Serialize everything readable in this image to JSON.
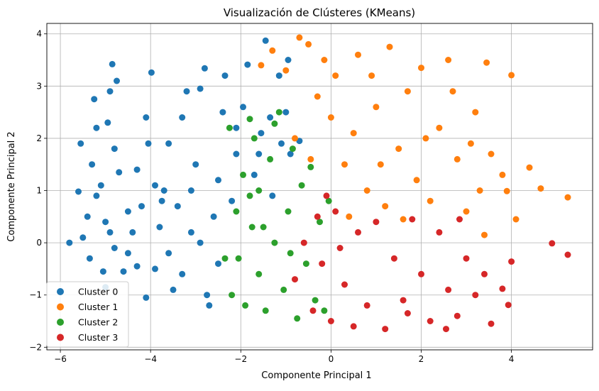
{
  "chart_data": {
    "type": "scatter",
    "title": "Visualización de Clústeres (KMeans)",
    "xlabel": "Componente Principal 1",
    "ylabel": "Componente Principal 2",
    "xlim": [
      -6.3,
      5.8
    ],
    "ylim": [
      -2.05,
      4.2
    ],
    "x_ticks": [
      -6,
      -4,
      -2,
      0,
      2,
      4
    ],
    "y_ticks": [
      -2,
      -1,
      0,
      1,
      2,
      3,
      4
    ],
    "x_tick_labels": [
      "−6",
      "−4",
      "−2",
      "0",
      "2",
      "4"
    ],
    "y_tick_labels": [
      "−2",
      "−1",
      "0",
      "1",
      "2",
      "3",
      "4"
    ],
    "grid": true,
    "legend_position": "lower-left",
    "series": [
      {
        "name": "Cluster 0",
        "color": "#1f77b4",
        "points": [
          [
            -5.8,
            0.0
          ],
          [
            -5.6,
            0.98
          ],
          [
            -5.55,
            1.9
          ],
          [
            -5.5,
            0.1
          ],
          [
            -5.4,
            0.5
          ],
          [
            -5.3,
            1.5
          ],
          [
            -5.2,
            2.2
          ],
          [
            -5.1,
            1.1
          ],
          [
            -5.0,
            0.4
          ],
          [
            -4.95,
            2.3
          ],
          [
            -4.9,
            2.9
          ],
          [
            -4.85,
            3.42
          ],
          [
            -4.8,
            1.8
          ],
          [
            -4.7,
            1.35
          ],
          [
            -4.75,
            3.1
          ],
          [
            -5.05,
            -0.55
          ],
          [
            -5.0,
            -0.85
          ],
          [
            -4.9,
            0.2
          ],
          [
            -4.8,
            -0.1
          ],
          [
            -5.25,
            2.75
          ],
          [
            -4.6,
            -0.55
          ],
          [
            -4.5,
            -0.2
          ],
          [
            -4.4,
            0.2
          ],
          [
            -4.3,
            1.4
          ],
          [
            -4.2,
            0.7
          ],
          [
            -4.1,
            2.4
          ],
          [
            -4.05,
            1.9
          ],
          [
            -3.98,
            3.26
          ],
          [
            -3.9,
            -0.5
          ],
          [
            -3.8,
            0.3
          ],
          [
            -3.7,
            1.0
          ],
          [
            -3.6,
            1.9
          ],
          [
            -3.5,
            -0.9
          ],
          [
            -3.4,
            0.7
          ],
          [
            -3.3,
            2.4
          ],
          [
            -3.2,
            2.9
          ],
          [
            -3.1,
            0.2
          ],
          [
            -3.0,
            1.5
          ],
          [
            -2.9,
            2.95
          ],
          [
            -2.8,
            3.34
          ],
          [
            -2.7,
            -1.2
          ],
          [
            -2.6,
            0.5
          ],
          [
            -2.5,
            1.2
          ],
          [
            -2.4,
            2.5
          ],
          [
            -2.35,
            3.2
          ],
          [
            -2.2,
            0.8
          ],
          [
            -2.1,
            1.7
          ],
          [
            -1.95,
            2.6
          ],
          [
            -1.85,
            3.41
          ],
          [
            -1.7,
            1.3
          ],
          [
            -1.55,
            2.1
          ],
          [
            -1.45,
            3.87
          ],
          [
            -1.3,
            0.9
          ],
          [
            -1.15,
            3.2
          ],
          [
            -1.0,
            2.5
          ],
          [
            -0.95,
            3.5
          ],
          [
            -0.9,
            1.7
          ],
          [
            -3.6,
            -0.2
          ],
          [
            -3.9,
            1.1
          ],
          [
            -4.1,
            -1.05
          ],
          [
            -3.3,
            -0.6
          ],
          [
            -2.9,
            0.0
          ],
          [
            -2.5,
            -0.4
          ],
          [
            -2.75,
            -1.0
          ],
          [
            -3.1,
            1.0
          ],
          [
            -4.3,
            -0.45
          ],
          [
            -3.75,
            0.8
          ],
          [
            -2.1,
            2.2
          ],
          [
            -1.6,
            1.7
          ],
          [
            -1.35,
            2.4
          ],
          [
            -1.1,
            1.9
          ],
          [
            -0.7,
            1.95
          ],
          [
            -4.5,
            0.6
          ],
          [
            -5.2,
            0.9
          ],
          [
            -5.35,
            -0.3
          ]
        ]
      },
      {
        "name": "Cluster 1",
        "color": "#ff7f0e",
        "points": [
          [
            -1.55,
            3.4
          ],
          [
            -1.3,
            3.68
          ],
          [
            -1.0,
            3.3
          ],
          [
            -0.7,
            3.93
          ],
          [
            -0.5,
            3.8
          ],
          [
            -0.3,
            2.8
          ],
          [
            -0.15,
            3.5
          ],
          [
            0.1,
            3.2
          ],
          [
            0.3,
            1.5
          ],
          [
            0.5,
            2.1
          ],
          [
            0.6,
            3.6
          ],
          [
            0.8,
            1.0
          ],
          [
            1.0,
            2.6
          ],
          [
            1.2,
            0.7
          ],
          [
            1.3,
            3.75
          ],
          [
            1.5,
            1.8
          ],
          [
            1.7,
            2.9
          ],
          [
            1.9,
            1.2
          ],
          [
            2.0,
            3.35
          ],
          [
            2.2,
            0.8
          ],
          [
            2.4,
            2.2
          ],
          [
            2.6,
            3.5
          ],
          [
            2.8,
            1.6
          ],
          [
            3.0,
            0.6
          ],
          [
            3.2,
            2.5
          ],
          [
            3.3,
            1.0
          ],
          [
            3.45,
            3.45
          ],
          [
            3.55,
            1.7
          ],
          [
            3.8,
            1.3
          ],
          [
            3.9,
            0.99
          ],
          [
            4.0,
            3.21
          ],
          [
            4.1,
            0.45
          ],
          [
            4.4,
            1.44
          ],
          [
            4.65,
            1.04
          ],
          [
            5.25,
            0.87
          ],
          [
            0.0,
            2.4
          ],
          [
            0.4,
            0.5
          ],
          [
            0.9,
            3.2
          ],
          [
            1.6,
            0.45
          ],
          [
            2.1,
            2.0
          ],
          [
            2.7,
            2.9
          ],
          [
            3.1,
            1.9
          ],
          [
            3.4,
            0.15
          ],
          [
            -0.8,
            2.0
          ],
          [
            -0.45,
            1.6
          ],
          [
            1.1,
            1.5
          ]
        ]
      },
      {
        "name": "Cluster 2",
        "color": "#2ca02c",
        "points": [
          [
            -2.35,
            -0.3
          ],
          [
            -2.2,
            -1.0
          ],
          [
            -2.1,
            0.6
          ],
          [
            -2.05,
            -0.3
          ],
          [
            -1.95,
            1.3
          ],
          [
            -1.9,
            -1.2
          ],
          [
            -1.8,
            0.9
          ],
          [
            -1.7,
            2.0
          ],
          [
            -1.6,
            -0.6
          ],
          [
            -1.5,
            0.3
          ],
          [
            -1.45,
            -1.3
          ],
          [
            -1.35,
            1.6
          ],
          [
            -1.25,
            0.0
          ],
          [
            -1.15,
            2.5
          ],
          [
            -1.05,
            -0.9
          ],
          [
            -0.95,
            0.6
          ],
          [
            -0.85,
            1.8
          ],
          [
            -0.75,
            -1.45
          ],
          [
            -0.65,
            1.1
          ],
          [
            -0.55,
            -0.4
          ],
          [
            -0.45,
            1.45
          ],
          [
            -0.35,
            -1.1
          ],
          [
            -0.25,
            0.4
          ],
          [
            -0.15,
            -1.3
          ],
          [
            -0.05,
            0.8
          ],
          [
            -1.75,
            0.3
          ],
          [
            -1.25,
            2.28
          ],
          [
            -1.8,
            2.37
          ],
          [
            -2.25,
            2.2
          ],
          [
            -1.6,
            1.0
          ],
          [
            -0.9,
            -0.2
          ]
        ]
      },
      {
        "name": "Cluster 3",
        "color": "#d62728",
        "points": [
          [
            -0.8,
            -0.7
          ],
          [
            -0.6,
            0.0
          ],
          [
            -0.4,
            -1.3
          ],
          [
            -0.3,
            0.5
          ],
          [
            -0.2,
            -0.4
          ],
          [
            0.0,
            -1.5
          ],
          [
            0.1,
            0.6
          ],
          [
            0.3,
            -0.8
          ],
          [
            0.5,
            -1.6
          ],
          [
            0.6,
            0.2
          ],
          [
            0.8,
            -1.2
          ],
          [
            1.0,
            0.4
          ],
          [
            1.2,
            -1.65
          ],
          [
            1.4,
            -0.3
          ],
          [
            1.6,
            -1.1
          ],
          [
            1.8,
            0.45
          ],
          [
            2.0,
            -0.6
          ],
          [
            2.2,
            -1.5
          ],
          [
            2.4,
            0.2
          ],
          [
            2.6,
            -0.9
          ],
          [
            2.8,
            -1.4
          ],
          [
            3.0,
            -0.3
          ],
          [
            3.2,
            -1.0
          ],
          [
            3.4,
            -0.6
          ],
          [
            3.55,
            -1.55
          ],
          [
            3.8,
            -0.88
          ],
          [
            3.93,
            -1.19
          ],
          [
            4.0,
            -0.36
          ],
          [
            4.9,
            -0.01
          ],
          [
            5.25,
            -0.23
          ],
          [
            2.85,
            0.45
          ],
          [
            2.55,
            -1.65
          ],
          [
            1.7,
            -1.35
          ],
          [
            0.2,
            -0.1
          ],
          [
            -0.1,
            0.9
          ]
        ]
      }
    ]
  }
}
